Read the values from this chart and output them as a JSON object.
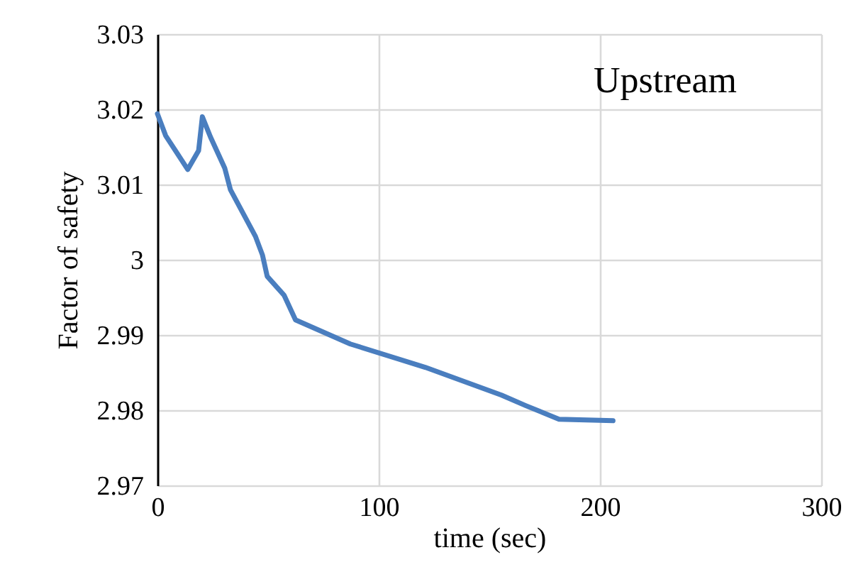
{
  "chart_data": {
    "type": "line",
    "xlabel": "time (sec)",
    "ylabel": "Factor of safety",
    "annotations": [
      "Upstream"
    ],
    "x": [
      0,
      3.7,
      13.7,
      18.6,
      20.3,
      24,
      30.4,
      33,
      44.3,
      47.5,
      49.6,
      57.2,
      62.4,
      87.2,
      121,
      155.5,
      166.5,
      181.5,
      205.9
    ],
    "series": [
      {
        "color": "#4a7ebf",
        "values": [
          3.0194,
          3.0165,
          3.012,
          3.0145,
          3.019,
          3.0163,
          3.0122,
          3.0093,
          3.0031,
          3.0006,
          2.9978,
          2.9953,
          2.992,
          2.9888,
          2.9857,
          2.982,
          2.9806,
          2.9788,
          2.9786
        ]
      }
    ],
    "xlim": [
      0,
      300
    ],
    "xticks": [
      0,
      100,
      200,
      300
    ],
    "ylim": [
      2.97,
      3.03
    ],
    "yticks": [
      2.97,
      2.98,
      2.99,
      3,
      3.01,
      3.02,
      3.03
    ],
    "grid": true,
    "legend": false,
    "marker": "none",
    "line_style": "solid"
  }
}
